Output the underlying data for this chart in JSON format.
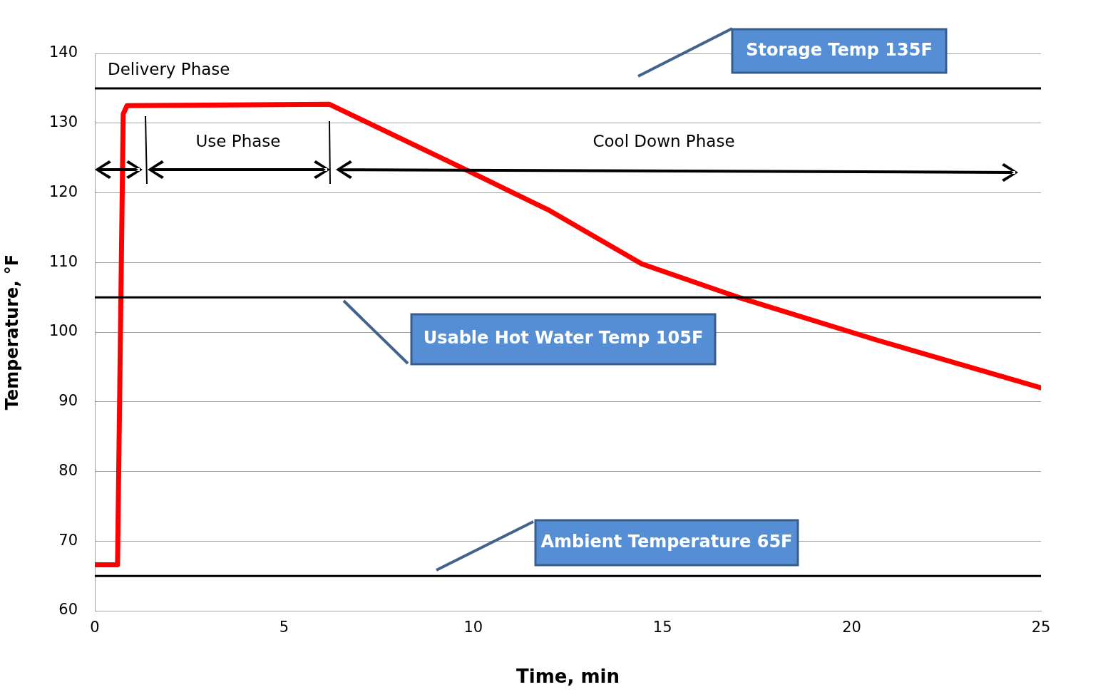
{
  "chart_data": {
    "type": "line",
    "xlabel": "Time, min",
    "ylabel": "Temperature, °F",
    "series": [
      {
        "color": "#ff0000",
        "x": [
          0,
          0.6,
          0.75,
          0.85,
          6.2,
          9.5,
          12,
          14.45,
          17,
          20.7,
          25
        ],
        "values": [
          66.6,
          66.6,
          131.3,
          132.5,
          132.7,
          124.1,
          117.5,
          109.8,
          105,
          98.8,
          92
        ]
      }
    ],
    "xlim": [
      0,
      25
    ],
    "xticks": [
      0,
      5,
      10,
      15,
      20,
      25
    ],
    "ylim": [
      60,
      140
    ],
    "yticks": [
      60,
      70,
      80,
      90,
      100,
      110,
      120,
      130,
      140
    ],
    "grid": "y",
    "legend": false,
    "marker": "none",
    "line_style": "solid",
    "ref_lines": [
      {
        "axis": "y",
        "value": 135,
        "label": "Storage Temp 135F",
        "color": "#000000"
      },
      {
        "axis": "y",
        "value": 105,
        "label": "Usable Hot Water Temp 105F",
        "color": "#000000"
      },
      {
        "axis": "y",
        "value": 65,
        "label": "Ambient Temperature 65F",
        "color": "#000000"
      }
    ],
    "annotations": [
      "Delivery Phase",
      "Use Phase",
      "Cool Down Phase"
    ]
  }
}
